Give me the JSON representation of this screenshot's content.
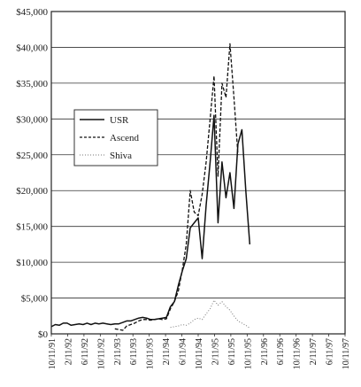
{
  "chart_data": {
    "type": "line",
    "title": "",
    "xlabel": "",
    "ylabel": "",
    "ylim": [
      0,
      45000
    ],
    "y_ticks": [
      0,
      5000,
      10000,
      15000,
      20000,
      25000,
      30000,
      35000,
      40000,
      45000
    ],
    "y_tick_labels": [
      "$0",
      "$5,000",
      "$10,000",
      "$15,000",
      "$20,000",
      "$25,000",
      "$30,000",
      "$35,000",
      "$40,000",
      "$45,000"
    ],
    "x_tick_labels": [
      "10/11/91",
      "2/11/92",
      "6/11/92",
      "10/11/92",
      "2/11/93",
      "6/11/93",
      "10/11/93",
      "2/11/94",
      "6/11/94",
      "10/11/94",
      "2/11/95",
      "6/11/95",
      "10/11/95",
      "2/11/96",
      "6/11/96",
      "10/11/96",
      "2/11/97",
      "6/11/97",
      "10/11/97"
    ],
    "x_range_months": [
      0,
      74
    ],
    "grid": "horizontal",
    "legend_position": "middle-left",
    "series": [
      {
        "name": "USR",
        "style": "solid",
        "color": "#111111",
        "points": [
          [
            0,
            1000
          ],
          [
            1,
            1300
          ],
          [
            2,
            1200
          ],
          [
            3,
            1500
          ],
          [
            4,
            1500
          ],
          [
            5,
            1200
          ],
          [
            6,
            1300
          ],
          [
            7,
            1400
          ],
          [
            8,
            1300
          ],
          [
            9,
            1500
          ],
          [
            10,
            1300
          ],
          [
            11,
            1500
          ],
          [
            12,
            1400
          ],
          [
            13,
            1500
          ],
          [
            14,
            1400
          ],
          [
            15,
            1300
          ],
          [
            16,
            1400
          ],
          [
            17,
            1400
          ],
          [
            18,
            1600
          ],
          [
            19,
            1800
          ],
          [
            20,
            1800
          ],
          [
            21,
            2000
          ],
          [
            22,
            2200
          ],
          [
            23,
            2300
          ],
          [
            24,
            2200
          ],
          [
            25,
            2000
          ],
          [
            26,
            2000
          ],
          [
            27,
            2100
          ],
          [
            28,
            2200
          ],
          [
            29,
            2300
          ],
          [
            30,
            3800
          ],
          [
            31,
            4500
          ],
          [
            32,
            6800
          ],
          [
            33,
            8800
          ],
          [
            34,
            10500
          ],
          [
            35,
            14800
          ],
          [
            36,
            15500
          ],
          [
            37,
            16200
          ],
          [
            38,
            10500
          ],
          [
            39,
            18000
          ],
          [
            40,
            24000
          ],
          [
            41,
            30500
          ],
          [
            42,
            15500
          ],
          [
            43,
            24000
          ],
          [
            44,
            19000
          ],
          [
            45,
            22500
          ],
          [
            46,
            17500
          ],
          [
            47,
            26500
          ],
          [
            48,
            28500
          ],
          [
            49,
            20000
          ],
          [
            50,
            12500
          ]
        ]
      },
      {
        "name": "Ascend",
        "style": "dashed",
        "color": "#111111",
        "points": [
          [
            16,
            700
          ],
          [
            17,
            600
          ],
          [
            18,
            500
          ],
          [
            19,
            1100
          ],
          [
            20,
            1300
          ],
          [
            21,
            1500
          ],
          [
            22,
            1800
          ],
          [
            23,
            2000
          ],
          [
            24,
            2000
          ],
          [
            25,
            1900
          ],
          [
            26,
            2000
          ],
          [
            27,
            2100
          ],
          [
            28,
            2000
          ],
          [
            29,
            2100
          ],
          [
            30,
            3500
          ],
          [
            31,
            4500
          ],
          [
            32,
            6000
          ],
          [
            33,
            9000
          ],
          [
            34,
            12500
          ],
          [
            35,
            20000
          ],
          [
            36,
            17000
          ],
          [
            37,
            16500
          ],
          [
            38,
            19500
          ],
          [
            39,
            24000
          ],
          [
            40,
            30000
          ],
          [
            41,
            36000
          ],
          [
            42,
            22000
          ],
          [
            43,
            35000
          ],
          [
            44,
            33000
          ],
          [
            45,
            40500
          ],
          [
            46,
            33000
          ],
          [
            47,
            25000
          ]
        ]
      },
      {
        "name": "Shiva",
        "style": "dotted",
        "color": "#777777",
        "points": [
          [
            30,
            900
          ],
          [
            31,
            1000
          ],
          [
            32,
            1100
          ],
          [
            33,
            1300
          ],
          [
            34,
            1200
          ],
          [
            35,
            1500
          ],
          [
            36,
            2000
          ],
          [
            37,
            2200
          ],
          [
            38,
            2000
          ],
          [
            39,
            2800
          ],
          [
            40,
            3500
          ],
          [
            41,
            4700
          ],
          [
            42,
            4000
          ],
          [
            43,
            4500
          ],
          [
            44,
            3800
          ],
          [
            45,
            3300
          ],
          [
            46,
            2500
          ],
          [
            47,
            1800
          ],
          [
            48,
            1500
          ],
          [
            49,
            1200
          ],
          [
            50,
            800
          ]
        ]
      }
    ]
  }
}
